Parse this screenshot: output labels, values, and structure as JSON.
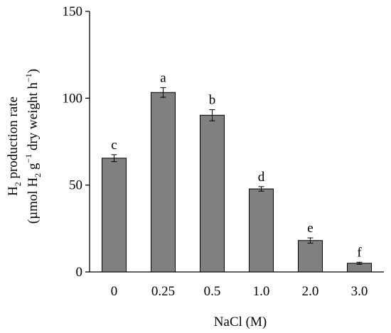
{
  "chart_data": {
    "type": "bar",
    "categories": [
      "0",
      "0.25",
      "0.5",
      "1.0",
      "2.0",
      "3.0"
    ],
    "values": [
      65.5,
      103.3,
      90.2,
      47.8,
      18.1,
      5.0
    ],
    "errors": [
      2.0,
      2.8,
      3.2,
      1.3,
      1.5,
      0.6
    ],
    "significance_letters": [
      "c",
      "a",
      "b",
      "d",
      "e",
      "f"
    ],
    "xlabel": "NaCl (M)",
    "ylabel": {
      "line1": {
        "t1": "H",
        "sub": "2",
        "t2": " production rate"
      },
      "line2": {
        "t1": "(µmol H",
        "sub": "2",
        "t2": " g",
        "sup1": "−1",
        "t3": " dry weight h",
        "sup2": "−1",
        "t4": ")"
      }
    },
    "ylim": [
      0,
      150
    ],
    "yticks": [
      "0",
      "50",
      "100",
      "150"
    ],
    "ytick_values": [
      0,
      50,
      100,
      150
    ],
    "grid": false,
    "bar_color": "#808080",
    "bar_edge_color": "#000000"
  }
}
